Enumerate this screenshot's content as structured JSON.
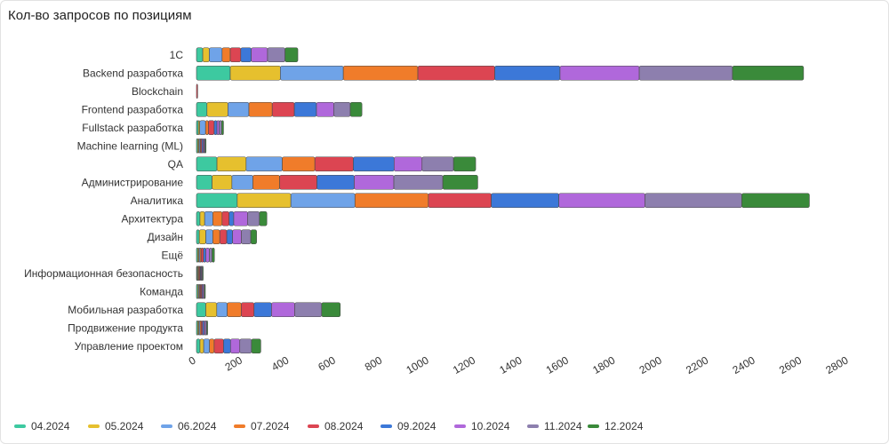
{
  "chart_data": {
    "type": "bar",
    "orientation": "horizontal",
    "stacked": true,
    "title": "Кол-во запросов по позициям",
    "xlim": [
      0,
      2800
    ],
    "x_ticks": [
      "0",
      "200",
      "400",
      "600",
      "800",
      "1000",
      "1200",
      "1400",
      "1600",
      "1800",
      "2000",
      "2200",
      "2400",
      "2600",
      "2800"
    ],
    "grid": false,
    "legend_position": "bottom-left",
    "categories": [
      "1С",
      "Backend разработка",
      "Blockchain",
      "Frontend разработка",
      "Fullstack разработка",
      "Machine learning (ML)",
      "QA",
      "Администрирование",
      "Аналитика",
      "Архитектура",
      "Дизайн",
      "Ещё",
      "Информационная безопасность",
      "Команда",
      "Мобильная разработка",
      "Продвижение продукта",
      "Управление проектом"
    ],
    "series": [
      {
        "name": "04.2024",
        "color": "#3dc9a0",
        "values": [
          27,
          145,
          0,
          45,
          8,
          5,
          88,
          67,
          175,
          15,
          12,
          5,
          3,
          5,
          40,
          5,
          15
        ]
      },
      {
        "name": "05.2024",
        "color": "#e6c02e",
        "values": [
          28,
          215,
          0,
          90,
          6,
          5,
          125,
          85,
          230,
          20,
          28,
          5,
          3,
          4,
          47,
          5,
          16
        ]
      },
      {
        "name": "06.2024",
        "color": "#6fa3e8",
        "values": [
          55,
          270,
          0,
          90,
          25,
          5,
          155,
          90,
          275,
          35,
          30,
          5,
          3,
          4,
          45,
          5,
          25
        ]
      },
      {
        "name": "07.2024",
        "color": "#f07c2a",
        "values": [
          35,
          320,
          0,
          100,
          12,
          3,
          140,
          115,
          315,
          40,
          30,
          5,
          3,
          4,
          60,
          5,
          20
        ]
      },
      {
        "name": "08.2024",
        "color": "#dc4552",
        "values": [
          45,
          330,
          5,
          95,
          25,
          5,
          165,
          160,
          270,
          30,
          30,
          10,
          4,
          5,
          55,
          6,
          40
        ]
      },
      {
        "name": "09.2024",
        "color": "#3c78d8",
        "values": [
          45,
          280,
          0,
          95,
          12,
          5,
          175,
          160,
          290,
          20,
          25,
          10,
          3,
          3,
          75,
          6,
          30
        ]
      },
      {
        "name": "10.2024",
        "color": "#b068db",
        "values": [
          70,
          340,
          0,
          75,
          10,
          5,
          120,
          170,
          370,
          60,
          38,
          15,
          3,
          5,
          100,
          6,
          40
        ]
      },
      {
        "name": "11.2024",
        "color": "#8d7fae",
        "values": [
          75,
          400,
          0,
          70,
          10,
          4,
          135,
          210,
          415,
          50,
          40,
          12,
          3,
          4,
          115,
          6,
          50
        ]
      },
      {
        "name": "12.2024",
        "color": "#3a8a3a",
        "values": [
          55,
          305,
          0,
          50,
          8,
          4,
          95,
          150,
          290,
          32,
          25,
          10,
          3,
          4,
          80,
          4,
          40
        ]
      }
    ]
  }
}
